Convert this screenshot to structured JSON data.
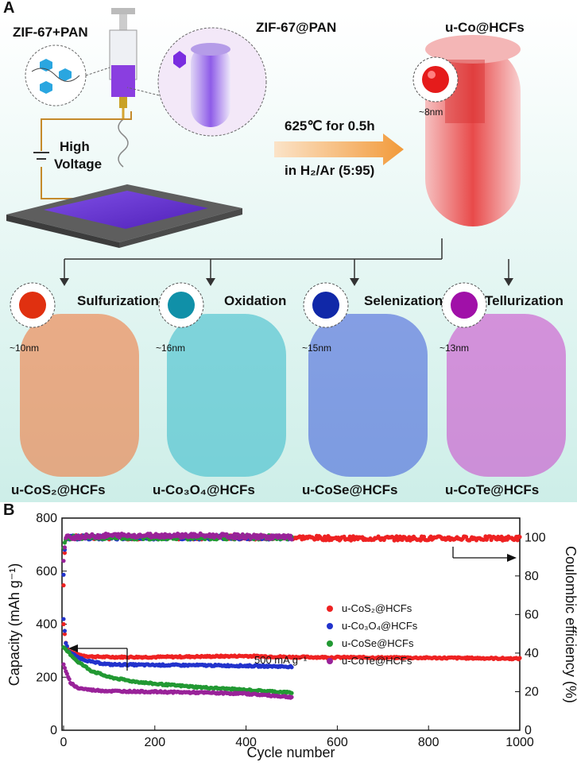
{
  "panel_a": {
    "letter": "A",
    "title_left": "ZIF-67+PAN",
    "title_mid": "ZIF-67@PAN",
    "title_right": "u-Co@HCFs",
    "size_co": "~8nm",
    "voltage": [
      "High",
      "Voltage"
    ],
    "condition_temp": "625℃ for 0.5h",
    "condition_gas": "in H₂/Ar (5:95)",
    "processes": [
      {
        "name": "Sulfurization",
        "size": "~10nm",
        "product": "u-CoS₂@HCFs",
        "color": "#f07030",
        "core": "#e03010"
      },
      {
        "name": "Oxidation",
        "size": "~16nm",
        "product": "u-Co₃O₄@HCFs",
        "color": "#30b8c8",
        "core": "#1090a8"
      },
      {
        "name": "Selenization",
        "size": "~15nm",
        "product": "u-CoSe@HCFs",
        "color": "#3858d8",
        "core": "#1028a8"
      },
      {
        "name": "Tellurization",
        "size": "~13nm",
        "product": "u-CoTe@HCFs",
        "color": "#c840c8",
        "core": "#a010a8"
      }
    ]
  },
  "panel_b": {
    "letter": "B"
  },
  "chart_data": {
    "type": "scatter",
    "xlabel": "Cycle number",
    "ylabel": "Capacity (mAh g⁻¹)",
    "y2label": "Coulombic efficiency (%)",
    "xlim": [
      0,
      1000
    ],
    "ylim": [
      0,
      800
    ],
    "y2lim": [
      0,
      110
    ],
    "xticks": [
      "0",
      "200",
      "400",
      "600",
      "800",
      "1000"
    ],
    "yticks": [
      "0",
      "200",
      "400",
      "600",
      "800"
    ],
    "y2ticks": [
      "0",
      "20",
      "40",
      "60",
      "80",
      "100"
    ],
    "annotation": "500 mA g⁻¹",
    "legend_position": "right",
    "series": [
      {
        "name": "u-CoS₂@HCFs",
        "color": "#ee2222",
        "capacity": [
          [
            0,
            400
          ],
          [
            5,
            330
          ],
          [
            10,
            300
          ],
          [
            30,
            285
          ],
          [
            60,
            278
          ],
          [
            100,
            276
          ],
          [
            200,
            276
          ],
          [
            300,
            278
          ],
          [
            400,
            280
          ],
          [
            500,
            276
          ],
          [
            600,
            275
          ],
          [
            700,
            274
          ],
          [
            800,
            273
          ],
          [
            900,
            272
          ],
          [
            1000,
            270
          ]
        ],
        "ce": [
          [
            0,
            75
          ],
          [
            3,
            96
          ],
          [
            6,
            100
          ],
          [
            50,
            100
          ],
          [
            200,
            100
          ],
          [
            400,
            100
          ],
          [
            500,
            100
          ],
          [
            600,
            99.5
          ],
          [
            800,
            99.5
          ],
          [
            1000,
            99.5
          ]
        ]
      },
      {
        "name": "u-Co₃O₄@HCFs",
        "color": "#2233cc",
        "capacity": [
          [
            0,
            420
          ],
          [
            5,
            330
          ],
          [
            10,
            300
          ],
          [
            30,
            275
          ],
          [
            60,
            258
          ],
          [
            100,
            248
          ],
          [
            200,
            246
          ],
          [
            300,
            245
          ],
          [
            400,
            243
          ],
          [
            500,
            240
          ]
        ],
        "ce": [
          [
            0,
            80
          ],
          [
            3,
            97
          ],
          [
            6,
            100
          ],
          [
            100,
            100
          ],
          [
            300,
            100
          ],
          [
            500,
            100
          ]
        ]
      },
      {
        "name": "u-CoSe@HCFs",
        "color": "#229933",
        "capacity": [
          [
            0,
            310
          ],
          [
            10,
            295
          ],
          [
            30,
            260
          ],
          [
            60,
            225
          ],
          [
            100,
            200
          ],
          [
            150,
            185
          ],
          [
            200,
            175
          ],
          [
            300,
            162
          ],
          [
            400,
            152
          ],
          [
            500,
            142
          ]
        ],
        "ce": [
          [
            0,
            95
          ],
          [
            5,
            100
          ],
          [
            100,
            100
          ],
          [
            300,
            100
          ],
          [
            500,
            100
          ]
        ]
      },
      {
        "name": "u-CoTe@HCFs",
        "color": "#992299",
        "capacity": [
          [
            0,
            250
          ],
          [
            5,
            220
          ],
          [
            15,
            180
          ],
          [
            30,
            160
          ],
          [
            60,
            152
          ],
          [
            100,
            148
          ],
          [
            200,
            145
          ],
          [
            300,
            142
          ],
          [
            400,
            138
          ],
          [
            500,
            125
          ]
        ],
        "ce": [
          [
            0,
            88
          ],
          [
            5,
            100
          ],
          [
            100,
            101
          ],
          [
            300,
            101
          ],
          [
            500,
            100
          ]
        ]
      }
    ]
  }
}
